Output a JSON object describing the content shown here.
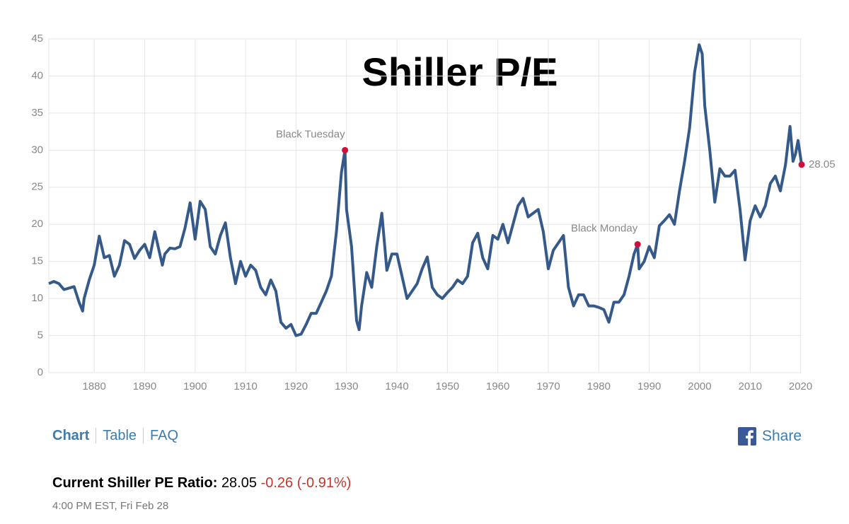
{
  "chart_data": {
    "type": "line",
    "title": "Shiller P/E",
    "x": [
      1871,
      1872,
      1873,
      1874,
      1875,
      1876,
      1877,
      1877.7,
      1878,
      1879,
      1880,
      1881,
      1882,
      1883,
      1884,
      1885,
      1886,
      1887,
      1888,
      1889,
      1890,
      1891,
      1892,
      1893,
      1893.5,
      1894,
      1895,
      1896,
      1897,
      1898,
      1899,
      1900,
      1901,
      1902,
      1903,
      1904,
      1905,
      1906,
      1907,
      1908,
      1909,
      1910,
      1911,
      1912,
      1913,
      1914,
      1915,
      1916,
      1917,
      1918,
      1919,
      1920,
      1921,
      1922,
      1923,
      1924,
      1925,
      1926,
      1927,
      1928,
      1929,
      1929.7,
      1930,
      1931,
      1932,
      1932.5,
      1933,
      1934,
      1935,
      1936,
      1937,
      1938,
      1939,
      1940,
      1941,
      1942,
      1943,
      1944,
      1945,
      1946,
      1947,
      1948,
      1949,
      1950,
      1951,
      1952,
      1953,
      1954,
      1955,
      1956,
      1957,
      1958,
      1959,
      1960,
      1961,
      1962,
      1963,
      1964,
      1965,
      1966,
      1967,
      1968,
      1969,
      1970,
      1971,
      1972,
      1973,
      1974,
      1975,
      1976,
      1977,
      1978,
      1979,
      1980,
      1981,
      1982,
      1983,
      1984,
      1985,
      1986,
      1987,
      1987.7,
      1988,
      1989,
      1990,
      1991,
      1992,
      1993,
      1994,
      1995,
      1996,
      1997,
      1998,
      1999,
      1999.9,
      2000.5,
      2001,
      2002,
      2003,
      2004,
      2005,
      2006,
      2007,
      2008,
      2009,
      2010,
      2011,
      2012,
      2013,
      2014,
      2015,
      2016,
      2017,
      2017.9,
      2018.5,
      2019,
      2019.5,
      2020.2
    ],
    "values": [
      12.0,
      12.3,
      12.0,
      11.2,
      11.4,
      11.6,
      9.5,
      8.3,
      10.0,
      12.5,
      14.5,
      18.4,
      15.5,
      15.8,
      13.0,
      14.5,
      17.8,
      17.3,
      15.4,
      16.5,
      17.3,
      15.5,
      19.0,
      16.0,
      14.5,
      16.0,
      16.8,
      16.7,
      17.0,
      19.5,
      22.9,
      18.0,
      23.1,
      22.0,
      17.0,
      16.0,
      18.5,
      20.2,
      15.5,
      12.0,
      15.0,
      13.0,
      14.5,
      13.8,
      11.5,
      10.5,
      12.5,
      11.0,
      6.8,
      6.0,
      6.5,
      5.0,
      5.2,
      6.5,
      8.0,
      8.0,
      9.5,
      11.0,
      13.0,
      19.0,
      27.0,
      30.0,
      22.0,
      17.0,
      7.0,
      5.8,
      9.0,
      13.5,
      11.5,
      17.0,
      21.5,
      13.8,
      16.0,
      16.0,
      13.0,
      10.0,
      11.0,
      12.0,
      14.0,
      15.6,
      11.5,
      10.5,
      10.0,
      10.8,
      11.5,
      12.5,
      12.0,
      13.0,
      17.5,
      18.8,
      15.5,
      14.0,
      18.5,
      18.0,
      20.0,
      17.5,
      20.0,
      22.5,
      23.5,
      21.0,
      21.5,
      22.0,
      19.0,
      14.0,
      16.5,
      17.5,
      18.5,
      11.5,
      9.0,
      10.5,
      10.5,
      9.0,
      9.0,
      8.8,
      8.5,
      6.8,
      9.5,
      9.5,
      10.5,
      13.0,
      16.0,
      17.3,
      14.0,
      15.0,
      17.0,
      15.5,
      19.8,
      20.5,
      21.3,
      20.0,
      24.5,
      28.5,
      33.0,
      40.5,
      44.2,
      43.0,
      36.0,
      30.0,
      23.0,
      27.5,
      26.5,
      26.5,
      27.3,
      22.0,
      15.2,
      20.5,
      22.5,
      21.0,
      22.5,
      25.5,
      26.5,
      24.5,
      28.0,
      33.2,
      28.5,
      29.5,
      31.3,
      28.05
    ],
    "color": "#355a8a",
    "xlim": [
      1871,
      2020.2
    ],
    "xticks": [
      1880,
      1890,
      1900,
      1910,
      1920,
      1930,
      1940,
      1950,
      1960,
      1970,
      1980,
      1990,
      2000,
      2010,
      2020
    ],
    "ylim": [
      0,
      45
    ],
    "yticks": [
      0,
      5,
      10,
      15,
      20,
      25,
      30,
      35,
      40,
      45
    ],
    "grid": true,
    "annotations": [
      {
        "label": "Black Tuesday",
        "x": 1929.7,
        "y": 30.0
      },
      {
        "label": "Black Monday",
        "x": 1987.7,
        "y": 17.3
      },
      {
        "x": 2020.2,
        "y": 28.05
      }
    ],
    "marker_color": "#d0103a"
  },
  "nav": {
    "tabs": [
      "Chart",
      "Table",
      "FAQ"
    ],
    "share": "Share"
  },
  "footer": {
    "label": "Current Shiller PE Ratio:",
    "value": "28.05",
    "change": "-0.26 (-0.91%)",
    "time": "4:00 PM EST, Fri Feb 28"
  }
}
